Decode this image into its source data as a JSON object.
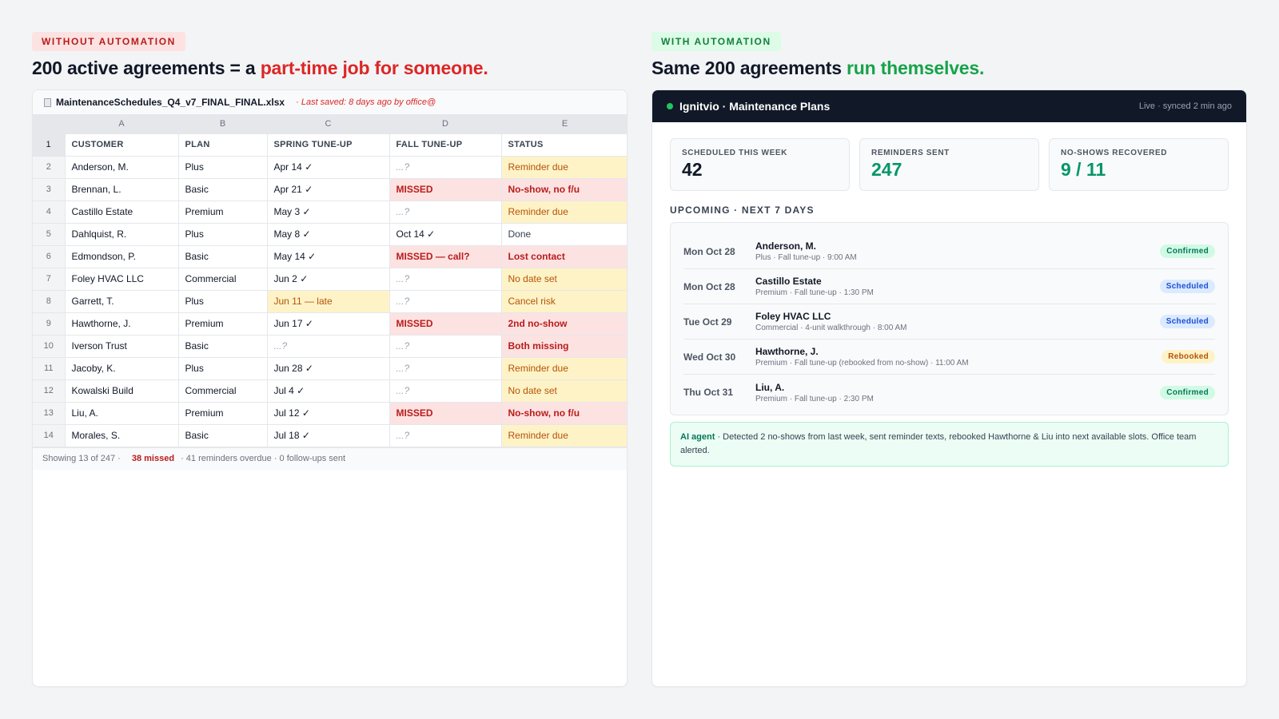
{
  "left": {
    "tag": "WITHOUT AUTOMATION",
    "headline_prefix": "200 active agreements = a ",
    "headline_highlight": "part-time job for someone.",
    "file": {
      "name": "MaintenanceSchedules_Q4_v7_FINAL_FINAL.xlsx",
      "saved": "· Last saved: 8 days ago by office@"
    },
    "column_letters": [
      "A",
      "B",
      "C",
      "D",
      "E"
    ],
    "header_row_num": "1",
    "headers": [
      "CUSTOMER",
      "PLAN",
      "SPRING TUNE-UP",
      "FALL TUNE-UP",
      "STATUS"
    ],
    "rows": [
      {
        "num": "2",
        "customer": "Anderson, M.",
        "plan": "Plus",
        "spring": "Apr 14 ✓",
        "fall": "...?",
        "status": "Reminder due"
      },
      {
        "num": "3",
        "customer": "Brennan, L.",
        "plan": "Basic",
        "spring": "Apr 21 ✓",
        "fall": "MISSED",
        "status": "No-show, no f/u"
      },
      {
        "num": "4",
        "customer": "Castillo Estate",
        "plan": "Premium",
        "spring": "May 3 ✓",
        "fall": "...?",
        "status": "Reminder due"
      },
      {
        "num": "5",
        "customer": "Dahlquist, R.",
        "plan": "Plus",
        "spring": "May 8 ✓",
        "fall": "Oct 14 ✓",
        "status": "Done"
      },
      {
        "num": "6",
        "customer": "Edmondson, P.",
        "plan": "Basic",
        "spring": "May 14 ✓",
        "fall": "MISSED — call?",
        "status": "Lost contact"
      },
      {
        "num": "7",
        "customer": "Foley HVAC LLC",
        "plan": "Commercial",
        "spring": "Jun 2 ✓",
        "fall": "...?",
        "status": "No date set"
      },
      {
        "num": "8",
        "customer": "Garrett, T.",
        "plan": "Plus",
        "spring": "Jun 11 — late",
        "fall": "...?",
        "status": "Cancel risk"
      },
      {
        "num": "9",
        "customer": "Hawthorne, J.",
        "plan": "Premium",
        "spring": "Jun 17 ✓",
        "fall": "MISSED",
        "status": "2nd no-show"
      },
      {
        "num": "10",
        "customer": "Iverson Trust",
        "plan": "Basic",
        "spring": "...?",
        "fall": "...?",
        "status": "Both missing"
      },
      {
        "num": "11",
        "customer": "Jacoby, K.",
        "plan": "Plus",
        "spring": "Jun 28 ✓",
        "fall": "...?",
        "status": "Reminder due"
      },
      {
        "num": "12",
        "customer": "Kowalski Build",
        "plan": "Commercial",
        "spring": "Jul 4 ✓",
        "fall": "...?",
        "status": "No date set"
      },
      {
        "num": "13",
        "customer": "Liu, A.",
        "plan": "Premium",
        "spring": "Jul 12 ✓",
        "fall": "MISSED",
        "status": "No-show, no f/u"
      },
      {
        "num": "14",
        "customer": "Morales, S.",
        "plan": "Basic",
        "spring": "Jul 18 ✓",
        "fall": "...?",
        "status": "Reminder due"
      }
    ],
    "footer": {
      "showing": "Showing 13 of 247 ·",
      "missed": "38 missed",
      "rest": "· 41 reminders overdue · 0 follow-ups sent"
    }
  },
  "right": {
    "tag": "WITH AUTOMATION",
    "headline_prefix": "Same 200 agreements ",
    "headline_highlight": "run themselves.",
    "app": {
      "title": "Ignitvio · Maintenance Plans",
      "status": "Live · synced 2 min ago"
    },
    "stats": [
      {
        "label": "SCHEDULED THIS WEEK",
        "value": "42"
      },
      {
        "label": "REMINDERS SENT",
        "value": "247"
      },
      {
        "label": "NO-SHOWS RECOVERED",
        "value": "9 / 11"
      }
    ],
    "section_title": "UPCOMING · NEXT 7 DAYS",
    "appointments": [
      {
        "date": "Mon Oct 28",
        "name": "Anderson, M.",
        "detail": "Plus · Fall tune-up · 9:00 AM",
        "badge": "Confirmed"
      },
      {
        "date": "Mon Oct 28",
        "name": "Castillo Estate",
        "detail": "Premium · Fall tune-up · 1:30 PM",
        "badge": "Scheduled"
      },
      {
        "date": "Tue Oct 29",
        "name": "Foley HVAC LLC",
        "detail": "Commercial · 4-unit walkthrough · 8:00 AM",
        "badge": "Scheduled"
      },
      {
        "date": "Wed Oct 30",
        "name": "Hawthorne, J.",
        "detail": "Premium · Fall tune-up (rebooked from no-show) · 11:00 AM",
        "badge": "Rebooked"
      },
      {
        "date": "Thu Oct 31",
        "name": "Liu, A.",
        "detail": "Premium · Fall tune-up · 2:30 PM",
        "badge": "Confirmed"
      }
    ],
    "ai_note": {
      "label": "AI agent",
      "text": " · Detected 2 no-shows from last week, sent reminder texts, rebooked Hawthorne & Liu into next available slots. Office team alerted."
    }
  },
  "colors": {
    "bad": "#dc2626",
    "good": "#16a34a",
    "warn_bg": "#fef3c7",
    "bad_bg": "#fde2e2",
    "app_bar": "#111827"
  }
}
